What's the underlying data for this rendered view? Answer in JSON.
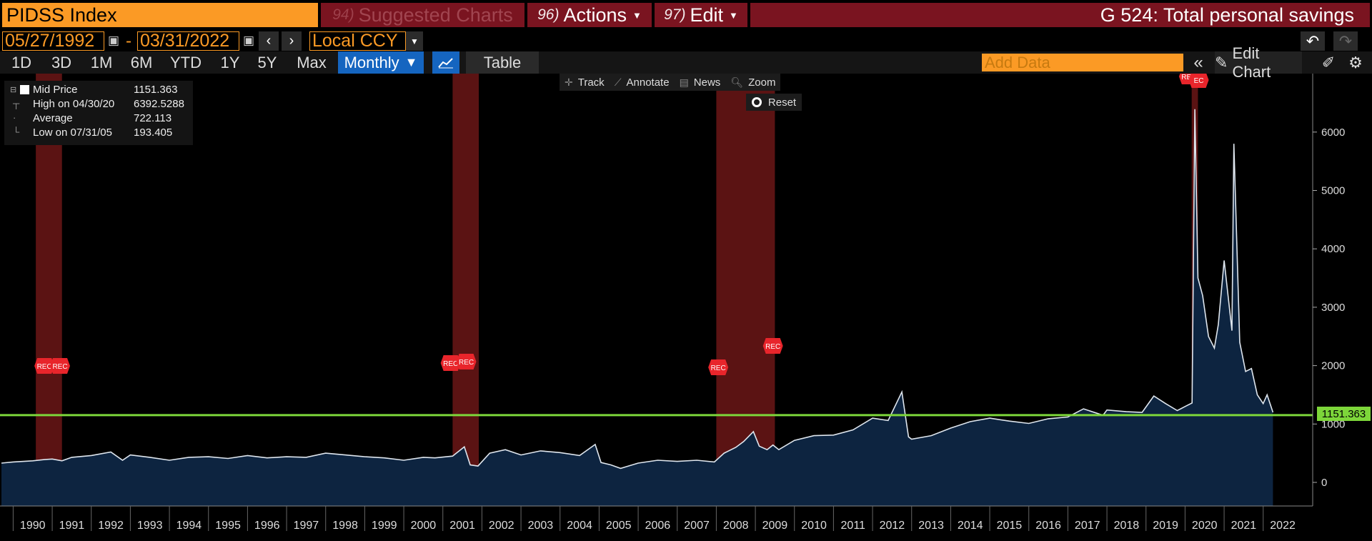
{
  "header": {
    "ticker": "PIDSS Index",
    "suggested_num": "94)",
    "suggested_label": "Suggested Charts",
    "actions_num": "96)",
    "actions_label": "Actions",
    "edit_num": "97)",
    "edit_label": "Edit",
    "chart_title": "G 524: Total personal savings"
  },
  "daterange": {
    "start": "05/27/1992",
    "separator": "-",
    "end": "03/31/2022",
    "currency": "Local CCY"
  },
  "periods": [
    "1D",
    "3D",
    "1M",
    "6M",
    "YTD",
    "1Y",
    "5Y",
    "Max"
  ],
  "frequency": "Monthly",
  "table_label": "Table",
  "add_data_placeholder": "Add Data",
  "edit_chart_label": "Edit Chart",
  "legend": {
    "mid_label": "Mid Price",
    "mid_value": "1151.363",
    "high_label": "High on 04/30/20",
    "high_value": "6392.5288",
    "avg_label": "Average",
    "avg_value": "722.113",
    "low_label": "Low on 07/31/05",
    "low_value": "193.405"
  },
  "tools": {
    "track": "Track",
    "annotate": "Annotate",
    "news": "News",
    "zoom": "Zoom",
    "reset": "Reset"
  },
  "last_value_label": "1151.363",
  "colors": {
    "orange": "#fb9a25",
    "maroon": "#7a1420",
    "blue": "#1565c0",
    "area": "#0d2440",
    "line": "#dfe6ee",
    "hline": "#7dd63a",
    "recession": "#7a1a1a"
  },
  "chart_data": {
    "type": "area",
    "title": "G 524: Total personal savings",
    "xlabel": "",
    "ylabel": "",
    "x_ticks": [
      "1990",
      "1991",
      "1992",
      "1993",
      "1994",
      "1995",
      "1996",
      "1997",
      "1998",
      "1999",
      "2000",
      "2001",
      "2002",
      "2003",
      "2004",
      "2005",
      "2006",
      "2007",
      "2008",
      "2009",
      "2010",
      "2011",
      "2012",
      "2013",
      "2014",
      "2015",
      "2016",
      "2017",
      "2018",
      "2019",
      "2020",
      "2021",
      "2022"
    ],
    "y_ticks": [
      0,
      1000,
      2000,
      3000,
      4000,
      5000,
      6000
    ],
    "ylim": [
      -400,
      7000
    ],
    "grid": false,
    "horizontal_line": 1151.363,
    "recession_bands": [
      {
        "start": 1990.58,
        "end": 1991.25
      },
      {
        "start": 2001.25,
        "end": 2001.92
      },
      {
        "start": 2008.0,
        "end": 2009.5
      },
      {
        "start": 2020.17,
        "end": 2020.33
      }
    ],
    "recession_markers": [
      {
        "x": 1990.8,
        "label": "REC"
      },
      {
        "x": 1991.2,
        "label": "REC"
      },
      {
        "x": 2001.2,
        "label": "REC"
      },
      {
        "x": 2001.6,
        "label": "REC"
      },
      {
        "x": 2008.05,
        "label": "REC"
      },
      {
        "x": 2009.45,
        "label": "REC"
      },
      {
        "x": 2020.1,
        "label": "REC"
      },
      {
        "x": 2020.35,
        "label": "EC"
      }
    ],
    "series": [
      {
        "x": [
          1989.7,
          1990.0,
          1990.5,
          1990.8,
          1991.0,
          1991.25,
          1991.5,
          1992.0,
          1992.5,
          1992.8,
          1993.0,
          1993.5,
          1994.0,
          1994.5,
          1995.0,
          1995.5,
          1996.0,
          1996.5,
          1997.0,
          1997.5,
          1998.0,
          1998.5,
          1999.0,
          1999.5,
          2000.0,
          2000.5,
          2000.8,
          2001.25,
          2001.55,
          2001.7,
          2001.9,
          2002.2,
          2002.6,
          2003.0,
          2003.5,
          2004.0,
          2004.5,
          2004.9,
          2005.05,
          2005.3,
          2005.55,
          2006.0,
          2006.5,
          2007.0,
          2007.5,
          2007.95,
          2008.2,
          2008.5,
          2008.7,
          2008.95,
          2009.1,
          2009.3,
          2009.45,
          2009.6,
          2010.0,
          2010.5,
          2011.0,
          2011.5,
          2012.0,
          2012.4,
          2012.75,
          2012.92,
          2013.0,
          2013.5,
          2014.0,
          2014.5,
          2015.0,
          2015.5,
          2016.0,
          2016.5,
          2017.0,
          2017.4,
          2017.9,
          2018.0,
          2018.5,
          2018.9,
          2019.2,
          2019.5,
          2019.8,
          2020.0,
          2020.18,
          2020.25,
          2020.33,
          2020.45,
          2020.6,
          2020.75,
          2020.85,
          2021.0,
          2021.2,
          2021.25,
          2021.4,
          2021.55,
          2021.7,
          2021.85,
          2022.0,
          2022.1,
          2022.25
        ],
        "y": [
          330,
          350,
          370,
          390,
          400,
          370,
          430,
          460,
          520,
          380,
          470,
          430,
          380,
          430,
          440,
          410,
          460,
          420,
          440,
          430,
          500,
          470,
          440,
          420,
          380,
          430,
          420,
          450,
          610,
          300,
          280,
          500,
          560,
          470,
          540,
          510,
          460,
          650,
          340,
          300,
          240,
          330,
          380,
          360,
          380,
          350,
          500,
          600,
          700,
          870,
          620,
          560,
          640,
          560,
          720,
          800,
          810,
          900,
          1100,
          1060,
          1550,
          780,
          740,
          800,
          930,
          1040,
          1100,
          1050,
          1010,
          1090,
          1120,
          1260,
          1150,
          1240,
          1210,
          1200,
          1480,
          1350,
          1230,
          1300,
          1360,
          6392,
          3500,
          3200,
          2500,
          2300,
          2700,
          3800,
          2600,
          5800,
          2400,
          1900,
          1950,
          1500,
          1350,
          1500,
          1200
        ]
      }
    ]
  }
}
